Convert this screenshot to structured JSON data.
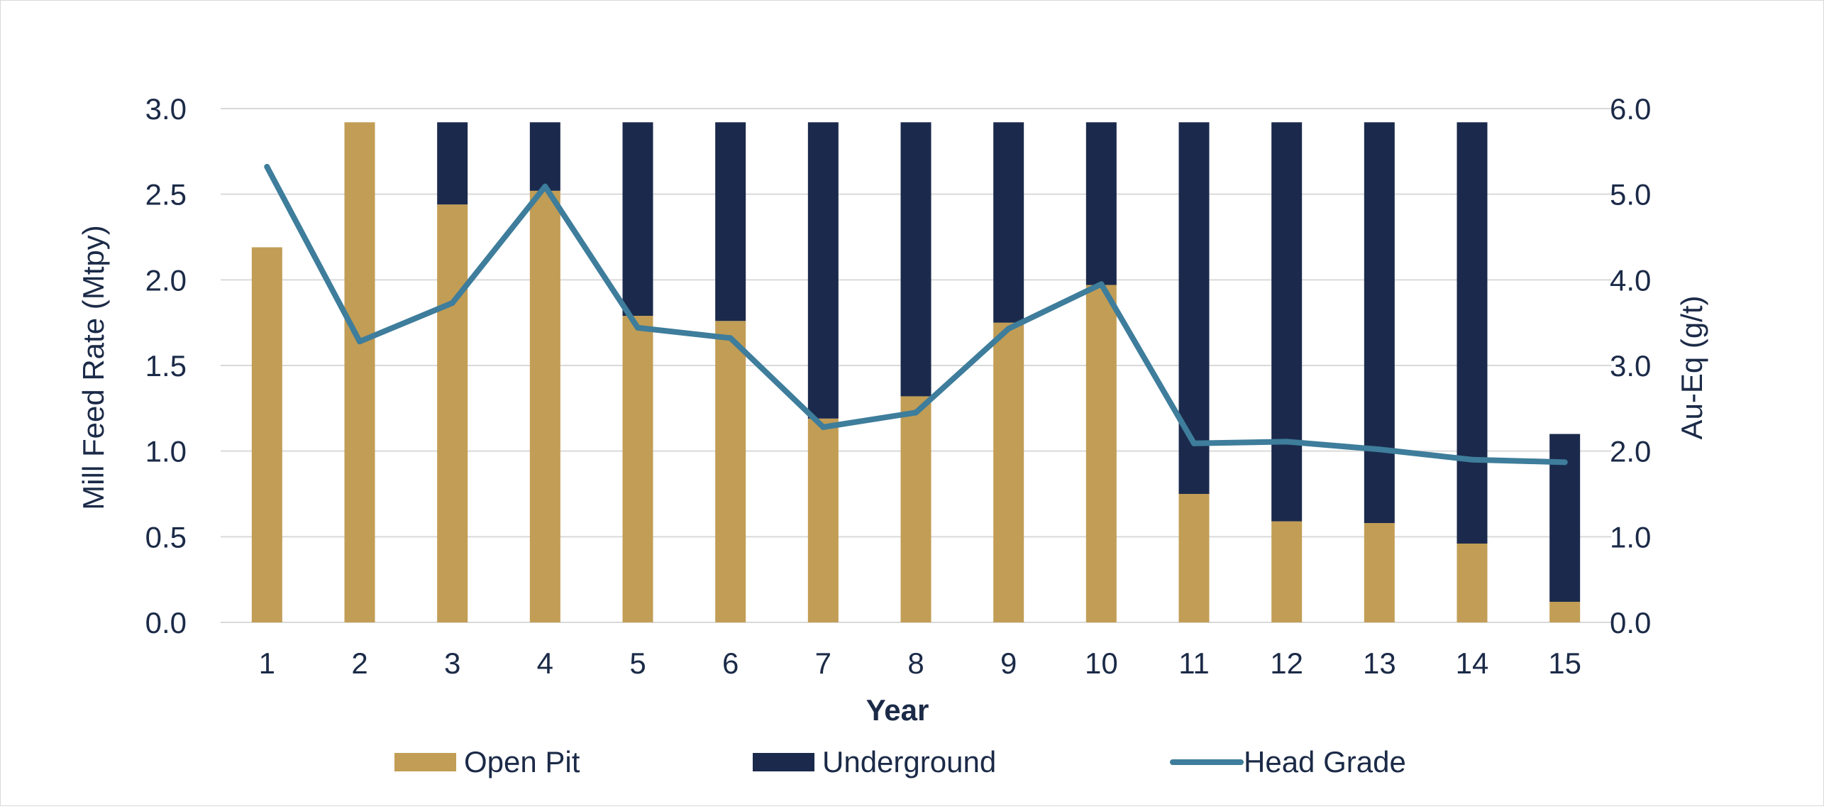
{
  "chart_data": {
    "type": "bar",
    "stacked": true,
    "title": "",
    "xlabel": "Year",
    "ylabel": "Mill Feed Rate  (Mtpy)",
    "y2label": "Au-Eq (g/t)",
    "ylim": [
      0,
      3.0
    ],
    "y2lim": [
      0,
      6.0
    ],
    "yticks": [
      "0.0",
      "0.5",
      "1.0",
      "1.5",
      "2.0",
      "2.5",
      "3.0"
    ],
    "y2ticks": [
      "0.0",
      "1.0",
      "2.0",
      "3.0",
      "4.0",
      "5.0",
      "6.0"
    ],
    "grid": true,
    "legend_position": "bottom",
    "categories": [
      "1",
      "2",
      "3",
      "4",
      "5",
      "6",
      "7",
      "8",
      "9",
      "10",
      "11",
      "12",
      "13",
      "14",
      "15"
    ],
    "series": [
      {
        "name": "Open Pit",
        "kind": "bar",
        "axis": "left",
        "color": "#c29d55",
        "values": [
          2.19,
          2.92,
          2.44,
          2.52,
          1.79,
          1.76,
          1.19,
          1.32,
          1.75,
          1.97,
          0.75,
          0.59,
          0.58,
          0.46,
          0.12
        ]
      },
      {
        "name": "Underground",
        "kind": "bar",
        "axis": "left",
        "color": "#1b2a4c",
        "values": [
          0,
          0,
          0.48,
          0.4,
          1.13,
          1.16,
          1.73,
          1.6,
          1.17,
          0.95,
          2.17,
          2.33,
          2.34,
          2.46,
          0.98
        ]
      },
      {
        "name": "Head Grade",
        "kind": "line",
        "axis": "right",
        "color": "#3e7d9b",
        "values": [
          5.32,
          3.28,
          3.73,
          5.09,
          3.44,
          3.32,
          2.28,
          2.45,
          3.43,
          3.95,
          2.09,
          2.11,
          2.02,
          1.9,
          1.87
        ]
      }
    ]
  },
  "colors": {
    "grid": "#d9d9d9",
    "text": "#1b2a47",
    "frame": "#d9d9d9"
  }
}
